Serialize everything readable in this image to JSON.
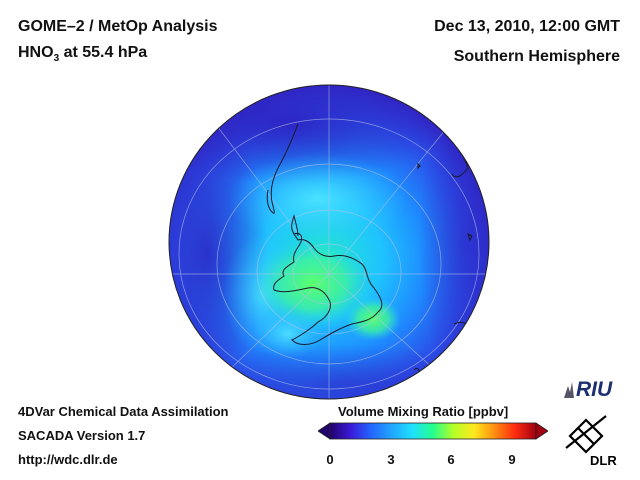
{
  "header": {
    "title_line1": "GOME–2 / MetOp Analysis",
    "title_line2_prefix": "HNO",
    "title_line2_sub": "3",
    "title_line2_suffix": " at 55.4 hPa",
    "date": "Dec 13, 2010, 12:00 GMT",
    "region": "Southern Hemisphere"
  },
  "footer": {
    "line1": "4DVar Chemical Data Assimilation",
    "line2": "SACADA Version 1.7",
    "line3": "http://wdc.dlr.de"
  },
  "colorbar": {
    "label": "Volume Mixing Ratio [ppbv]",
    "ticks": [
      "0",
      "3",
      "6",
      "9"
    ],
    "min": 0,
    "max": 10,
    "colors": [
      "#22006e",
      "#3a1ad8",
      "#2266ff",
      "#21a6ff",
      "#1ee0ff",
      "#24ff8c",
      "#b6ff26",
      "#ffe81e",
      "#ff8c10",
      "#ff2a10",
      "#a00010"
    ]
  },
  "logos": {
    "riu": "RIU",
    "dlr": "DLR"
  }
}
